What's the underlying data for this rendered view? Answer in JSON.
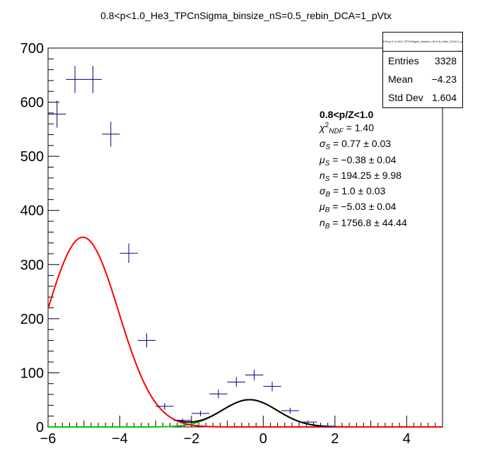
{
  "chart_data": {
    "type": "scatter",
    "title": "0.8<p<1.0_He3_TPCnSigma_binsize_nS=0.5_rebin_DCA=1_pVtx",
    "xlim": [
      -6,
      5
    ],
    "ylim": [
      0,
      700
    ],
    "xticks": [
      "−6",
      "−4",
      "−2",
      "0",
      "2",
      "4"
    ],
    "xtick_values": [
      -6,
      -4,
      -2,
      0,
      2,
      4
    ],
    "yticks": [
      "0",
      "100",
      "200",
      "300",
      "400",
      "500",
      "600",
      "700"
    ],
    "ytick_values": [
      0,
      100,
      200,
      300,
      400,
      500,
      600,
      700
    ],
    "grid": false,
    "colors": {
      "data": "#000080",
      "total_fit": "#ff0000",
      "signal_fit": "#000000",
      "background_fit": "#00cc00"
    },
    "histogram": [
      {
        "x": -5.75,
        "y": 578,
        "err": 25
      },
      {
        "x": -5.25,
        "y": 642,
        "err": 25
      },
      {
        "x": -4.75,
        "y": 642,
        "err": 25
      },
      {
        "x": -4.25,
        "y": 541,
        "err": 23
      },
      {
        "x": -3.75,
        "y": 321,
        "err": 18
      },
      {
        "x": -3.25,
        "y": 160,
        "err": 13
      },
      {
        "x": -2.75,
        "y": 38,
        "err": 6
      },
      {
        "x": -2.25,
        "y": 12,
        "err": 3.5
      },
      {
        "x": -1.75,
        "y": 25,
        "err": 5
      },
      {
        "x": -1.25,
        "y": 61,
        "err": 8
      },
      {
        "x": -0.75,
        "y": 83,
        "err": 9
      },
      {
        "x": -0.25,
        "y": 96,
        "err": 10
      },
      {
        "x": 0.25,
        "y": 75,
        "err": 9
      },
      {
        "x": 0.75,
        "y": 30,
        "err": 5.5
      },
      {
        "x": 1.25,
        "y": 9,
        "err": 3
      },
      {
        "x": 1.75,
        "y": 1,
        "err": 1
      }
    ],
    "fit": {
      "sigma_S": 0.77,
      "mu_S": -0.38,
      "n_S": 194.25,
      "sigma_B": 1.0,
      "mu_B": -5.03,
      "n_B": 1756.8,
      "bin_width": 0.5
    }
  },
  "stats": {
    "title": "0.8<p<1.0_He3_TPCnSigma_binsize_nS=0.5_rebin_DCA=1_pVtx",
    "rows": [
      {
        "label": "Entries",
        "value": "3328"
      },
      {
        "label": "Mean",
        "value": "−4.23"
      },
      {
        "label": "Std Dev",
        "value": "1.604"
      }
    ]
  },
  "fit_text": {
    "header": "0.8<p/Z<1.0",
    "chi2_value": "= 1.40",
    "sigma_s": "= 0.77 ± 0.03",
    "mu_s": "= −0.38 ± 0.04",
    "n_s": "= 194.25 ± 9.98",
    "sigma_b": "= 1.0 ± 0.03",
    "mu_b": "= −5.03 ± 0.04",
    "n_b": "= 1756.8 ± 44.44"
  }
}
